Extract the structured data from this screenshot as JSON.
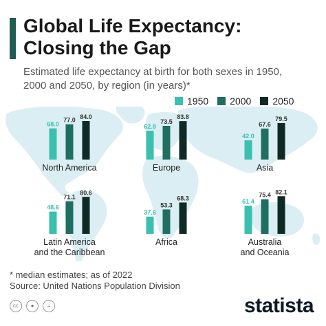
{
  "header": {
    "title_line1": "Global Life Expectancy:",
    "title_line2": "Closing the Gap",
    "subtitle_line1": "Estimated life expectancy at birth for both sexes in 1950,",
    "subtitle_line2": "2000 and 2050, by region (in years)*"
  },
  "colors": {
    "c1950": "#39c0ae",
    "c2000": "#1f6e62",
    "c2050": "#0f2a25",
    "accent": "#1f5c51",
    "map": "#dbeef3"
  },
  "icons": [
    "cc-icon",
    "person-icon",
    "equals-icon"
  ],
  "footer": {
    "note": "* median estimates; as of 2022",
    "source": "Source: United Nations Population Division",
    "brand": "statista"
  },
  "chart_data": {
    "type": "bar",
    "series": [
      {
        "name": "1950",
        "color": "#39c0ae"
      },
      {
        "name": "2000",
        "color": "#1f6e62"
      },
      {
        "name": "2050",
        "color": "#0f2a25"
      }
    ],
    "categories": [
      {
        "label": [
          "North America"
        ],
        "values": [
          68.0,
          77.0,
          84.0
        ]
      },
      {
        "label": [
          "Europe"
        ],
        "values": [
          62.8,
          73.5,
          83.8
        ]
      },
      {
        "label": [
          "Asia"
        ],
        "values": [
          42.0,
          67.6,
          79.5
        ]
      },
      {
        "label": [
          "Latin America",
          "and the Caribbean"
        ],
        "values": [
          48.6,
          71.1,
          80.6
        ]
      },
      {
        "label": [
          "Africa"
        ],
        "values": [
          37.6,
          53.3,
          68.3
        ]
      },
      {
        "label": [
          "Australia",
          "and Oceania"
        ],
        "values": [
          61.4,
          75.4,
          82.1
        ]
      }
    ],
    "legend": "top-right",
    "value_labels": true
  }
}
